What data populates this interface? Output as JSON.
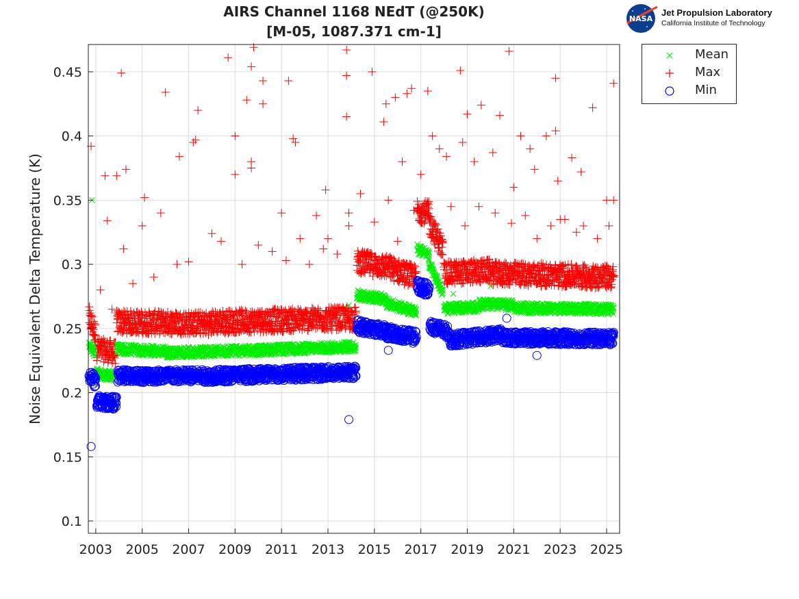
{
  "header": {
    "title_line1": "AIRS Channel 1168 NEdT (@250K)",
    "title_line2": "[M-05, 1087.371 cm-1]",
    "logo_agency": "NASA",
    "lab_name": "Jet Propulsion Laboratory",
    "lab_subtitle": "California Institute of Technology"
  },
  "chart_data": {
    "type": "scatter",
    "title": "AIRS Channel 1168 NEdT (@250K) [M-05, 1087.371 cm-1]",
    "xlabel": "",
    "ylabel": "Noise Equivalent Delta Temperature (K)",
    "xlim": [
      2002.68,
      2025.56
    ],
    "ylim": [
      0.0904,
      0.4713
    ],
    "xticks": [
      2003,
      2005,
      2007,
      2009,
      2011,
      2013,
      2015,
      2017,
      2019,
      2021,
      2023,
      2025
    ],
    "xtick_labels": [
      "2003",
      "2005",
      "2007",
      "2009",
      "2011",
      "2013",
      "2015",
      "2017",
      "2019",
      "2021",
      "2023",
      "2025"
    ],
    "yticks": [
      0.1,
      0.15,
      0.2,
      0.25,
      0.3,
      0.35,
      0.4,
      0.45
    ],
    "ytick_labels": [
      "0.1",
      "0.15",
      "0.2",
      "0.25",
      "0.3",
      "0.35",
      "0.4",
      "0.45"
    ],
    "grid": true,
    "legend_position": "outside-top-right",
    "series": [
      {
        "name": "Mean",
        "marker": "x",
        "color": "#00ee00",
        "trend_segments": [
          [
            2002.72,
            2002.95,
            0.236,
            0.232
          ],
          [
            2003.0,
            2003.85,
            0.215,
            0.213
          ],
          [
            2003.9,
            2006.0,
            0.234,
            0.232
          ],
          [
            2006.0,
            2010.0,
            0.231,
            0.233
          ],
          [
            2010.0,
            2014.2,
            0.233,
            0.236
          ],
          [
            2014.25,
            2015.5,
            0.276,
            0.273
          ],
          [
            2015.5,
            2016.8,
            0.27,
            0.263
          ],
          [
            2016.85,
            2017.35,
            0.312,
            0.308
          ],
          [
            2017.35,
            2017.95,
            0.3,
            0.278
          ],
          [
            2018.0,
            2019.5,
            0.265,
            0.267
          ],
          [
            2019.5,
            2021.0,
            0.269,
            0.268
          ],
          [
            2021.0,
            2025.3,
            0.266,
            0.265
          ]
        ],
        "band": 0.004,
        "outliers": [
          [
            2002.85,
            0.35
          ],
          [
            2005.0,
            0.235
          ],
          [
            2020.0,
            0.283
          ],
          [
            2013.9,
            0.268
          ],
          [
            2018.4,
            0.277
          ]
        ]
      },
      {
        "name": "Max",
        "marker": "+",
        "color": "#ff0000",
        "trend_segments": [
          [
            2002.72,
            2003.0,
            0.258,
            0.245
          ],
          [
            2003.05,
            2003.85,
            0.234,
            0.231
          ],
          [
            2003.9,
            2008.0,
            0.255,
            0.254
          ],
          [
            2008.0,
            2014.2,
            0.255,
            0.258
          ],
          [
            2014.25,
            2015.8,
            0.302,
            0.297
          ],
          [
            2015.8,
            2016.8,
            0.296,
            0.29
          ],
          [
            2016.85,
            2017.35,
            0.342,
            0.34
          ],
          [
            2017.35,
            2017.95,
            0.333,
            0.312
          ],
          [
            2018.0,
            2020.0,
            0.293,
            0.295
          ],
          [
            2020.0,
            2025.3,
            0.293,
            0.29
          ]
        ],
        "band": 0.009,
        "outliers": [
          [
            2002.8,
            0.392
          ],
          [
            2004.1,
            0.449
          ],
          [
            2003.4,
            0.369
          ],
          [
            2003.9,
            0.369
          ],
          [
            2004.3,
            0.374
          ],
          [
            2003.5,
            0.334
          ],
          [
            2006.0,
            0.434
          ],
          [
            2006.6,
            0.384
          ],
          [
            2005.1,
            0.352
          ],
          [
            2005.8,
            0.34
          ],
          [
            2007.4,
            0.42
          ],
          [
            2007.2,
            0.395
          ],
          [
            2007.3,
            0.397
          ],
          [
            2008.7,
            0.461
          ],
          [
            2009.0,
            0.4
          ],
          [
            2009.0,
            0.37
          ],
          [
            2009.5,
            0.428
          ],
          [
            2009.7,
            0.454
          ],
          [
            2009.8,
            0.469
          ],
          [
            2009.7,
            0.38
          ],
          [
            2009.7,
            0.375
          ],
          [
            2010.2,
            0.443
          ],
          [
            2010.2,
            0.425
          ],
          [
            2011.3,
            0.443
          ],
          [
            2011.5,
            0.398
          ],
          [
            2011.6,
            0.395
          ],
          [
            2012.9,
            0.358
          ],
          [
            2013.8,
            0.447
          ],
          [
            2013.8,
            0.467
          ],
          [
            2013.8,
            0.415
          ],
          [
            2014.9,
            0.45
          ],
          [
            2015.5,
            0.425
          ],
          [
            2015.4,
            0.411
          ],
          [
            2015.9,
            0.43
          ],
          [
            2016.4,
            0.433
          ],
          [
            2016.6,
            0.437
          ],
          [
            2017.3,
            0.435
          ],
          [
            2017.5,
            0.4
          ],
          [
            2018.1,
            0.384
          ],
          [
            2018.7,
            0.451
          ],
          [
            2018.8,
            0.395
          ],
          [
            2019.0,
            0.417
          ],
          [
            2019.3,
            0.38
          ],
          [
            2019.6,
            0.424
          ],
          [
            2020.1,
            0.387
          ],
          [
            2020.4,
            0.416
          ],
          [
            2020.8,
            0.466
          ],
          [
            2021.3,
            0.4
          ],
          [
            2021.7,
            0.39
          ],
          [
            2021.9,
            0.374
          ],
          [
            2022.4,
            0.4
          ],
          [
            2022.8,
            0.445
          ],
          [
            2022.8,
            0.404
          ],
          [
            2022.9,
            0.365
          ],
          [
            2023.5,
            0.383
          ],
          [
            2023.9,
            0.372
          ],
          [
            2024.4,
            0.422
          ],
          [
            2025.0,
            0.35
          ],
          [
            2025.3,
            0.441
          ],
          [
            2025.3,
            0.35
          ],
          [
            2008.0,
            0.324
          ],
          [
            2012.5,
            0.338
          ],
          [
            2011.0,
            0.34
          ],
          [
            2004.2,
            0.312
          ],
          [
            2005.0,
            0.33
          ],
          [
            2013.0,
            0.32
          ],
          [
            2016.2,
            0.38
          ],
          [
            2017.0,
            0.37
          ],
          [
            2017.8,
            0.39
          ],
          [
            2021.0,
            0.36
          ],
          [
            2023.2,
            0.335
          ],
          [
            2024.0,
            0.33
          ],
          [
            2004.6,
            0.285
          ],
          [
            2005.5,
            0.29
          ],
          [
            2006.5,
            0.3
          ],
          [
            2007.0,
            0.302
          ],
          [
            2008.4,
            0.318
          ],
          [
            2009.3,
            0.3
          ],
          [
            2010.0,
            0.315
          ],
          [
            2010.6,
            0.31
          ],
          [
            2011.2,
            0.303
          ],
          [
            2011.8,
            0.32
          ],
          [
            2012.2,
            0.3
          ],
          [
            2012.8,
            0.312
          ],
          [
            2013.4,
            0.308
          ],
          [
            2013.9,
            0.34
          ],
          [
            2013.9,
            0.33
          ],
          [
            2014.4,
            0.355
          ],
          [
            2015.0,
            0.333
          ],
          [
            2015.6,
            0.35
          ],
          [
            2016.0,
            0.318
          ],
          [
            2016.7,
            0.342
          ],
          [
            2018.3,
            0.345
          ],
          [
            2018.9,
            0.33
          ],
          [
            2019.5,
            0.345
          ],
          [
            2020.2,
            0.34
          ],
          [
            2020.9,
            0.332
          ],
          [
            2021.5,
            0.338
          ],
          [
            2022.0,
            0.32
          ],
          [
            2022.6,
            0.33
          ],
          [
            2023.0,
            0.335
          ],
          [
            2023.7,
            0.325
          ],
          [
            2024.6,
            0.32
          ],
          [
            2025.1,
            0.33
          ],
          [
            2003.2,
            0.28
          ],
          [
            2003.7,
            0.265
          ]
        ]
      },
      {
        "name": "Min",
        "marker": "o",
        "color": "#0000ff",
        "trend_segments": [
          [
            2002.72,
            2003.0,
            0.214,
            0.208
          ],
          [
            2003.05,
            2003.9,
            0.193,
            0.192
          ],
          [
            2003.95,
            2008.0,
            0.213,
            0.213
          ],
          [
            2008.0,
            2014.2,
            0.213,
            0.216
          ],
          [
            2014.25,
            2015.5,
            0.252,
            0.248
          ],
          [
            2015.5,
            2016.8,
            0.247,
            0.243
          ],
          [
            2016.85,
            2017.35,
            0.283,
            0.28
          ],
          [
            2017.4,
            2018.2,
            0.252,
            0.247
          ],
          [
            2018.25,
            2020.5,
            0.241,
            0.245
          ],
          [
            2020.5,
            2025.3,
            0.243,
            0.242
          ]
        ],
        "band": 0.005,
        "outliers": [
          [
            2002.8,
            0.158
          ],
          [
            2013.9,
            0.179
          ],
          [
            2020.7,
            0.258
          ],
          [
            2015.6,
            0.233
          ],
          [
            2022.0,
            0.229
          ]
        ]
      }
    ]
  },
  "legend": {
    "items": [
      {
        "label": "Mean",
        "marker": "x",
        "color": "#00ee00"
      },
      {
        "label": "Max",
        "marker": "+",
        "color": "#ff0000"
      },
      {
        "label": "Min",
        "marker": "o",
        "color": "#0000ff"
      }
    ]
  }
}
